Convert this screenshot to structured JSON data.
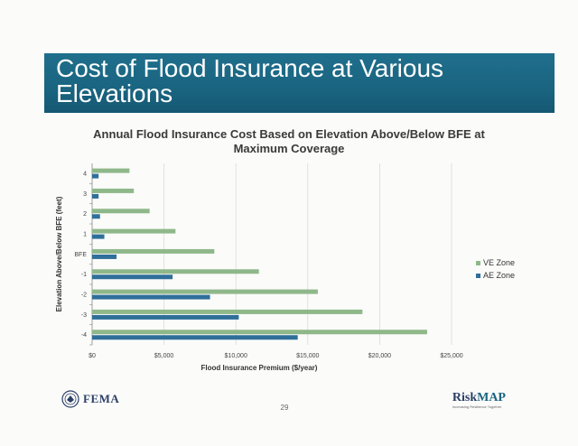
{
  "slide": {
    "title": "Cost of Flood Insurance at Various Elevations",
    "page_number": "29"
  },
  "footer": {
    "fema_logo_text": "FEMA",
    "riskmap_risk": "Risk",
    "riskmap_map": "MAP",
    "riskmap_tagline": "Increasing Resilience Together"
  },
  "colors": {
    "ve_zone": "#8fb88a",
    "ae_zone": "#2f6f9a",
    "title_banner": "#1a6480"
  },
  "chart_data": {
    "type": "bar",
    "orientation": "horizontal",
    "title": "Annual Flood Insurance Cost Based on Elevation Above/Below BFE at Maximum Coverage",
    "xlabel": "Flood Insurance Premium ($/year)",
    "ylabel": "Elevation Above/Below BFE (feet)",
    "categories": [
      "4",
      "3",
      "2",
      "1",
      "BFE",
      "-1",
      "-2",
      "-3",
      "-4"
    ],
    "series": [
      {
        "name": "VE Zone",
        "color": "#8fb88a",
        "values": [
          2600,
          2900,
          4000,
          5800,
          8500,
          11600,
          15700,
          18800,
          23300
        ]
      },
      {
        "name": "AE Zone",
        "color": "#2f6f9a",
        "values": [
          450,
          450,
          550,
          850,
          1700,
          5600,
          8200,
          10200,
          14300
        ]
      }
    ],
    "xlim": [
      0,
      25000
    ],
    "xticks": [
      "$0",
      "$5,000",
      "$10,000",
      "$15,000",
      "$20,000",
      "$25,000"
    ],
    "grid": "vertical",
    "legend_position": "right"
  }
}
